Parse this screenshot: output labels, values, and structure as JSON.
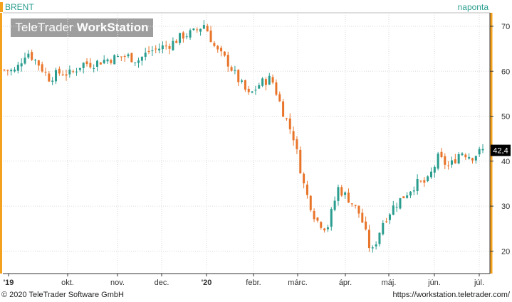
{
  "header": {
    "symbol": "BRENT",
    "period": "naponta",
    "watermark_light": "TeleTrader ",
    "watermark_bold": "WorkStation"
  },
  "footer": {
    "copyright": "© 2020 TeleTrader Software GmbH",
    "url": "https://workstation.teletrader.com/"
  },
  "colors": {
    "up": "#2a9d8f",
    "down": "#e8742a",
    "axis_accent": "#f4a21d",
    "grid": "#d9d9d9",
    "last_label_bg": "#000000"
  },
  "chart_data": {
    "type": "candlestick",
    "title": "BRENT",
    "period": "naponta",
    "y_ticks": [
      20,
      30,
      40,
      50,
      60,
      70
    ],
    "y_range": [
      15,
      73
    ],
    "x_labels": [
      "'19",
      "okt.",
      "nov.",
      "dec.",
      "'20",
      "febr.",
      "márc.",
      "ápr.",
      "máj.",
      "jún.",
      "júl."
    ],
    "last_value_label": "42,4",
    "last_value": 42.4,
    "grid": true,
    "series_close": [
      {
        "date": "2019-09-02",
        "close": 60.3
      },
      {
        "date": "2019-09-09",
        "close": 60.0
      },
      {
        "date": "2019-09-16",
        "close": 64.5
      },
      {
        "date": "2019-09-23",
        "close": 61.9
      },
      {
        "date": "2019-09-30",
        "close": 58.5
      },
      {
        "date": "2019-10-07",
        "close": 59.7
      },
      {
        "date": "2019-10-14",
        "close": 59.4
      },
      {
        "date": "2019-10-21",
        "close": 61.7
      },
      {
        "date": "2019-10-28",
        "close": 61.7
      },
      {
        "date": "2019-11-04",
        "close": 62.5
      },
      {
        "date": "2019-11-11",
        "close": 63.0
      },
      {
        "date": "2019-11-18",
        "close": 63.4
      },
      {
        "date": "2019-11-25",
        "close": 62.4
      },
      {
        "date": "2019-12-02",
        "close": 64.4
      },
      {
        "date": "2019-12-09",
        "close": 65.2
      },
      {
        "date": "2019-12-16",
        "close": 66.1
      },
      {
        "date": "2019-12-23",
        "close": 67.9
      },
      {
        "date": "2019-12-30",
        "close": 68.6
      },
      {
        "date": "2020-01-06",
        "close": 70.5
      },
      {
        "date": "2020-01-13",
        "close": 64.8
      },
      {
        "date": "2020-01-20",
        "close": 62.3
      },
      {
        "date": "2020-01-27",
        "close": 58.2
      },
      {
        "date": "2020-02-03",
        "close": 54.5
      },
      {
        "date": "2020-02-10",
        "close": 57.3
      },
      {
        "date": "2020-02-17",
        "close": 58.5
      },
      {
        "date": "2020-02-24",
        "close": 51.3
      },
      {
        "date": "2020-03-02",
        "close": 45.3
      },
      {
        "date": "2020-03-09",
        "close": 33.8
      },
      {
        "date": "2020-03-16",
        "close": 27.0
      },
      {
        "date": "2020-03-23",
        "close": 25.0
      },
      {
        "date": "2020-03-30",
        "close": 34.0
      },
      {
        "date": "2020-04-06",
        "close": 31.5
      },
      {
        "date": "2020-04-13",
        "close": 28.0
      },
      {
        "date": "2020-04-20",
        "close": 19.3
      },
      {
        "date": "2020-04-27",
        "close": 26.4
      },
      {
        "date": "2020-05-04",
        "close": 30.0
      },
      {
        "date": "2020-05-11",
        "close": 32.5
      },
      {
        "date": "2020-05-18",
        "close": 35.0
      },
      {
        "date": "2020-05-25",
        "close": 35.3
      },
      {
        "date": "2020-06-01",
        "close": 40.8
      },
      {
        "date": "2020-06-08",
        "close": 38.7
      },
      {
        "date": "2020-06-15",
        "close": 42.2
      },
      {
        "date": "2020-06-22",
        "close": 41.0
      },
      {
        "date": "2020-06-29",
        "close": 42.4
      }
    ]
  }
}
